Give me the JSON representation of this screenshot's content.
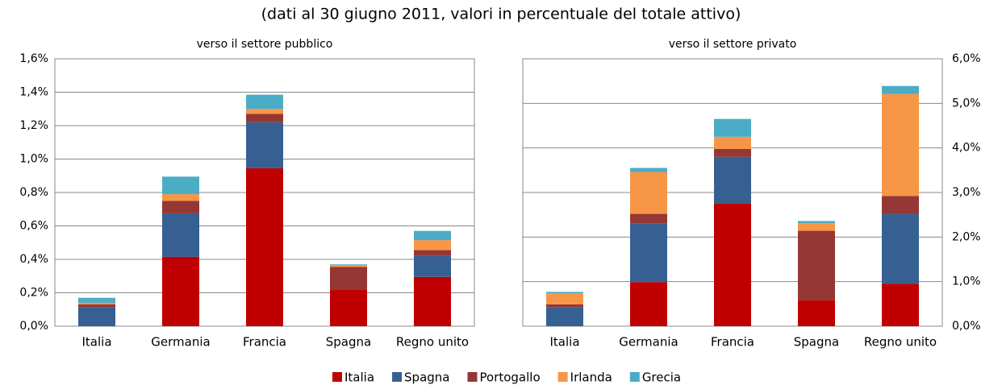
{
  "subtitle": "(dati al 30 giugno 2011, valori in percentuale del totale attivo)",
  "chart_data": [
    {
      "type": "stacked-bar",
      "title": "verso il settore pubblico",
      "yaxis_side": "left",
      "grid": true,
      "categories": [
        "Italia",
        "Germania",
        "Francia",
        "Spagna",
        "Regno unito"
      ],
      "ylim": [
        0,
        1.6
      ],
      "yticks": [
        {
          "value": 0,
          "label": "0,0%"
        },
        {
          "value": 0.2,
          "label": "0,2%"
        },
        {
          "value": 0.4,
          "label": "0,4%"
        },
        {
          "value": 0.6,
          "label": "0,6%"
        },
        {
          "value": 0.8,
          "label": "0,8%"
        },
        {
          "value": 1.0,
          "label": "1,0%"
        },
        {
          "value": 1.2,
          "label": "1,2%"
        },
        {
          "value": 1.4,
          "label": "1,4%"
        },
        {
          "value": 1.6,
          "label": "1,6%"
        }
      ],
      "series": [
        {
          "name": "Italia",
          "color": "#c00000",
          "values": [
            0,
            0.415,
            0.945,
            0.22,
            0.295
          ]
        },
        {
          "name": "Spagna",
          "color": "#366092",
          "values": [
            0.115,
            0.26,
            0.275,
            0,
            0.125
          ]
        },
        {
          "name": "Portogallo",
          "color": "#953735",
          "values": [
            0.015,
            0.075,
            0.05,
            0.135,
            0.035
          ]
        },
        {
          "name": "Irlanda",
          "color": "#f79646",
          "values": [
            0.01,
            0.04,
            0.03,
            0.01,
            0.06
          ]
        },
        {
          "name": "Grecia",
          "color": "#4bacc6",
          "values": [
            0.03,
            0.105,
            0.085,
            0.005,
            0.055
          ]
        }
      ]
    },
    {
      "type": "stacked-bar",
      "title": "verso il settore privato",
      "yaxis_side": "right",
      "grid": true,
      "categories": [
        "Italia",
        "Germania",
        "Francia",
        "Spagna",
        "Regno unito"
      ],
      "ylim": [
        0,
        6
      ],
      "yticks": [
        {
          "value": 0,
          "label": "0,0%"
        },
        {
          "value": 1,
          "label": "1,0%"
        },
        {
          "value": 2,
          "label": "2,0%"
        },
        {
          "value": 3,
          "label": "3,0%"
        },
        {
          "value": 4,
          "label": "4,0%"
        },
        {
          "value": 5,
          "label": "5,0%"
        },
        {
          "value": 6,
          "label": "6,0%"
        }
      ],
      "series": [
        {
          "name": "Italia",
          "color": "#c00000",
          "values": [
            0,
            0.99,
            2.76,
            0.58,
            0.95
          ]
        },
        {
          "name": "Spagna",
          "color": "#366092",
          "values": [
            0.43,
            1.32,
            1.04,
            0,
            1.57
          ]
        },
        {
          "name": "Portogallo",
          "color": "#953735",
          "values": [
            0.06,
            0.21,
            0.18,
            1.56,
            0.4
          ]
        },
        {
          "name": "Irlanda",
          "color": "#f79646",
          "values": [
            0.25,
            0.94,
            0.27,
            0.17,
            2.29
          ]
        },
        {
          "name": "Grecia",
          "color": "#4bacc6",
          "values": [
            0.03,
            0.09,
            0.4,
            0.05,
            0.18
          ]
        }
      ]
    }
  ]
}
